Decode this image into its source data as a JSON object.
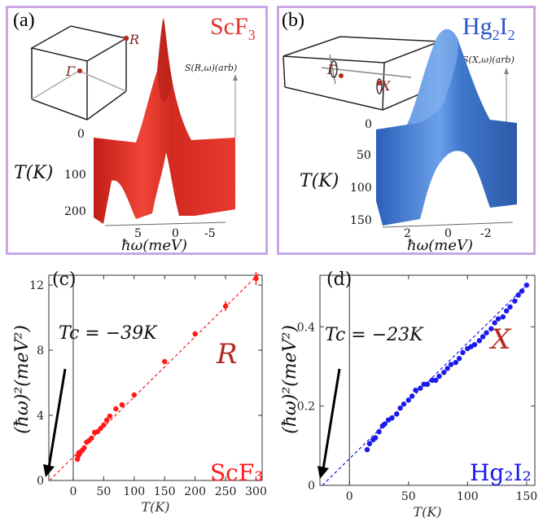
{
  "panels": {
    "a": {
      "label": "(a)",
      "material_main": "ScF",
      "material_sub": "3",
      "point_gamma": "Γ",
      "point_high": "R",
      "s_label": "S(R,ω)(arb)",
      "t_label": "T(K)",
      "t_ticks": [
        "0",
        "100",
        "200"
      ],
      "w_label": "ħω(meV)",
      "w_ticks": [
        "5",
        "0",
        "-5"
      ],
      "color": "#e3312a"
    },
    "b": {
      "label": "(b)",
      "material_main": "Hg",
      "material_sub1": "2",
      "material_mid": "I",
      "material_sub2": "2",
      "point_gamma": "Γ",
      "point_high": "X",
      "s_label": "S(X,ω)(arb)",
      "t_label": "T(K)",
      "t_ticks": [
        "0",
        "50",
        "100",
        "150"
      ],
      "w_label": "ħω(meV)",
      "w_ticks": [
        "2",
        "0",
        "-2"
      ],
      "color": "#3a72c8"
    }
  },
  "chart_data": [
    {
      "type": "scatter",
      "panel_label": "(c)",
      "point_label": "R",
      "material": "ScF₃",
      "annotation": "Tc = −39K",
      "xlabel": "T(K)",
      "ylabel": "(ħω)²(meV²)",
      "xlim": [
        -40,
        310
      ],
      "ylim": [
        0,
        12.6
      ],
      "xticks": [
        0,
        50,
        100,
        150,
        200,
        250,
        300
      ],
      "yticks": [
        0,
        4,
        8,
        12
      ],
      "color": "#ff1a1a",
      "fit": {
        "x": [
          -39,
          305
        ],
        "y": [
          0,
          12.7
        ]
      },
      "series": [
        {
          "x": [
            7,
            8,
            9,
            10,
            12,
            15,
            18,
            22,
            26,
            30,
            35,
            40,
            45,
            50,
            55,
            60,
            70,
            80,
            100,
            150,
            200,
            250,
            300
          ],
          "y": [
            1.3,
            1.5,
            1.7,
            1.6,
            1.75,
            1.85,
            2.0,
            2.35,
            2.45,
            2.6,
            2.95,
            3.0,
            3.2,
            3.4,
            3.7,
            3.95,
            4.4,
            4.65,
            5.25,
            7.3,
            9.0,
            10.7,
            12.4
          ]
        }
      ]
    },
    {
      "type": "scatter",
      "panel_label": "(d)",
      "point_label": "X",
      "material": "Hg₂I₂",
      "annotation": "Tc = −23K",
      "xlabel": "T(K)",
      "ylabel": "(ħω)²(meV²)",
      "xlim": [
        -25,
        157
      ],
      "ylim": [
        0,
        0.53
      ],
      "xticks": [
        0,
        50,
        100,
        150
      ],
      "yticks": [
        0,
        0.2,
        0.4
      ],
      "ytick_labels": [
        "0",
        "0.2",
        "0.4"
      ],
      "color": "#1a1aee",
      "fit": {
        "x": [
          -23,
          150
        ],
        "y": [
          0,
          0.505
        ]
      },
      "series": [
        {
          "x": [
            15,
            17,
            20,
            22,
            25,
            28,
            30,
            33,
            36,
            40,
            43,
            46,
            50,
            53,
            56,
            60,
            63,
            66,
            70,
            73,
            76,
            80,
            83,
            86,
            90,
            93,
            96,
            100,
            103,
            106,
            110,
            113,
            116,
            120,
            123,
            126,
            130,
            133,
            136,
            140,
            143,
            146,
            150
          ],
          "y": [
            0.09,
            0.105,
            0.115,
            0.12,
            0.135,
            0.15,
            0.155,
            0.165,
            0.17,
            0.18,
            0.195,
            0.205,
            0.215,
            0.225,
            0.24,
            0.245,
            0.255,
            0.255,
            0.265,
            0.265,
            0.275,
            0.285,
            0.295,
            0.305,
            0.31,
            0.32,
            0.335,
            0.345,
            0.35,
            0.355,
            0.365,
            0.375,
            0.385,
            0.395,
            0.41,
            0.42,
            0.425,
            0.44,
            0.45,
            0.465,
            0.48,
            0.49,
            0.505
          ]
        }
      ]
    }
  ]
}
